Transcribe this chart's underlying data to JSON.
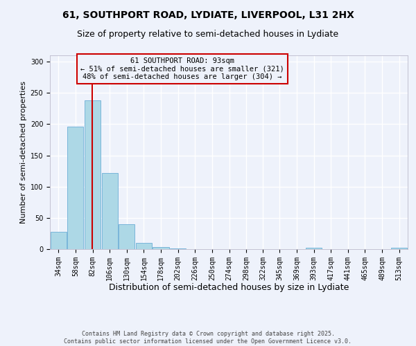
{
  "title1": "61, SOUTHPORT ROAD, LYDIATE, LIVERPOOL, L31 2HX",
  "title2": "Size of property relative to semi-detached houses in Lydiate",
  "xlabel": "Distribution of semi-detached houses by size in Lydiate",
  "ylabel": "Number of semi-detached properties",
  "bin_labels": [
    "34sqm",
    "58sqm",
    "82sqm",
    "106sqm",
    "130sqm",
    "154sqm",
    "178sqm",
    "202sqm",
    "226sqm",
    "250sqm",
    "274sqm",
    "298sqm",
    "322sqm",
    "345sqm",
    "369sqm",
    "393sqm",
    "417sqm",
    "441sqm",
    "465sqm",
    "489sqm",
    "513sqm"
  ],
  "bin_edges": [
    34,
    58,
    82,
    106,
    130,
    154,
    178,
    202,
    226,
    250,
    274,
    298,
    322,
    345,
    369,
    393,
    417,
    441,
    465,
    489,
    513,
    537
  ],
  "heights": [
    28,
    196,
    238,
    122,
    40,
    10,
    3,
    1,
    0,
    0,
    0,
    0,
    0,
    0,
    0,
    2,
    0,
    0,
    0,
    0,
    2
  ],
  "bar_color": "#add8e6",
  "bar_edgecolor": "#6baed6",
  "red_line_x": 93,
  "annotation_title": "61 SOUTHPORT ROAD: 93sqm",
  "annotation_line1": "← 51% of semi-detached houses are smaller (321)",
  "annotation_line2": "48% of semi-detached houses are larger (304) →",
  "annotation_box_color": "#cc0000",
  "ylim": [
    0,
    310
  ],
  "yticks": [
    0,
    50,
    100,
    150,
    200,
    250,
    300
  ],
  "footer1": "Contains HM Land Registry data © Crown copyright and database right 2025.",
  "footer2": "Contains public sector information licensed under the Open Government Licence v3.0.",
  "bg_color": "#eef2fb",
  "grid_color": "#ffffff",
  "title_fontsize": 10,
  "subtitle_fontsize": 9,
  "xlabel_fontsize": 9,
  "ylabel_fontsize": 8,
  "annotation_fontsize": 7.5,
  "tick_fontsize": 7,
  "footer_fontsize": 6
}
